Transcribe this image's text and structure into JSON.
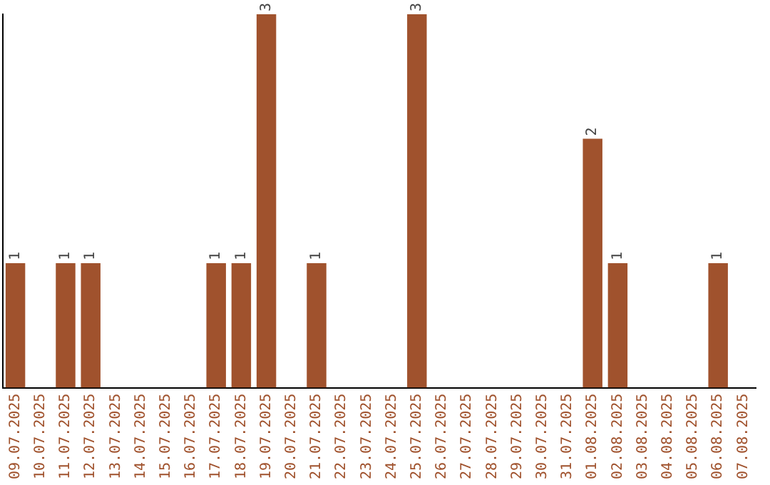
{
  "chart_data": {
    "type": "bar",
    "categories": [
      "09.07.2025",
      "10.07.2025",
      "11.07.2025",
      "12.07.2025",
      "13.07.2025",
      "14.07.2025",
      "15.07.2025",
      "16.07.2025",
      "17.07.2025",
      "18.07.2025",
      "19.07.2025",
      "20.07.2025",
      "21.07.2025",
      "22.07.2025",
      "23.07.2025",
      "24.07.2025",
      "25.07.2025",
      "26.07.2025",
      "27.07.2025",
      "28.07.2025",
      "29.07.2025",
      "30.07.2025",
      "31.07.2025",
      "01.08.2025",
      "02.08.2025",
      "03.08.2025",
      "04.08.2025",
      "05.08.2025",
      "06.08.2025",
      "07.08.2025"
    ],
    "values": [
      1,
      0,
      1,
      1,
      0,
      0,
      0,
      0,
      1,
      1,
      3,
      0,
      1,
      0,
      0,
      0,
      3,
      0,
      0,
      0,
      0,
      0,
      0,
      2,
      1,
      0,
      0,
      0,
      1,
      0
    ],
    "value_labels": [
      "1",
      null,
      "1",
      "1",
      null,
      null,
      null,
      null,
      "1",
      "1",
      "3",
      null,
      "1",
      null,
      null,
      null,
      "3",
      null,
      null,
      null,
      null,
      null,
      null,
      "2",
      "1",
      null,
      null,
      null,
      "1",
      null
    ],
    "color": "#a0522d",
    "ylim": [
      0,
      3
    ],
    "tick_labels": "x",
    "grid": false,
    "legend": false
  }
}
